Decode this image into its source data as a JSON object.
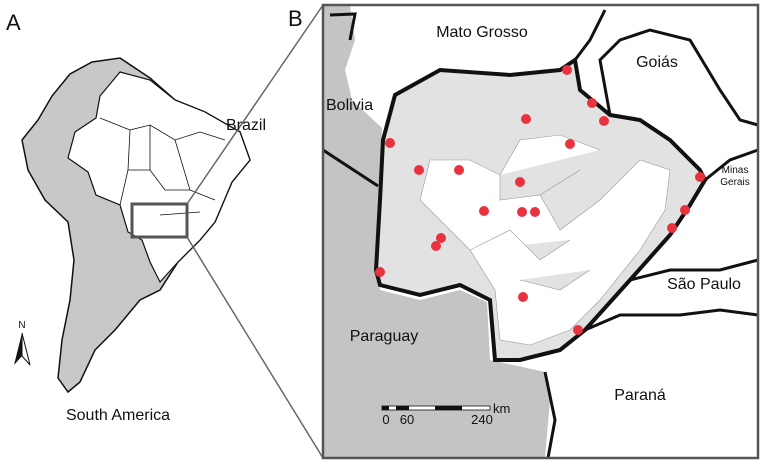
{
  "panel_a": {
    "label": "A",
    "country": "Brazil",
    "continent": "South America",
    "north": "N"
  },
  "panel_b": {
    "label": "B",
    "regions": {
      "mato_grosso": "Mato Grosso",
      "goias": "Goiás",
      "bolivia": "Bolivia",
      "minas_gerais": [
        "Minas",
        "Gerais"
      ],
      "sao_paulo": "São Paulo",
      "paraguay": "Paraguay",
      "parana": "Paraná"
    },
    "scale_bar": {
      "ticks": [
        0,
        60,
        240
      ],
      "unit": "km"
    }
  }
}
